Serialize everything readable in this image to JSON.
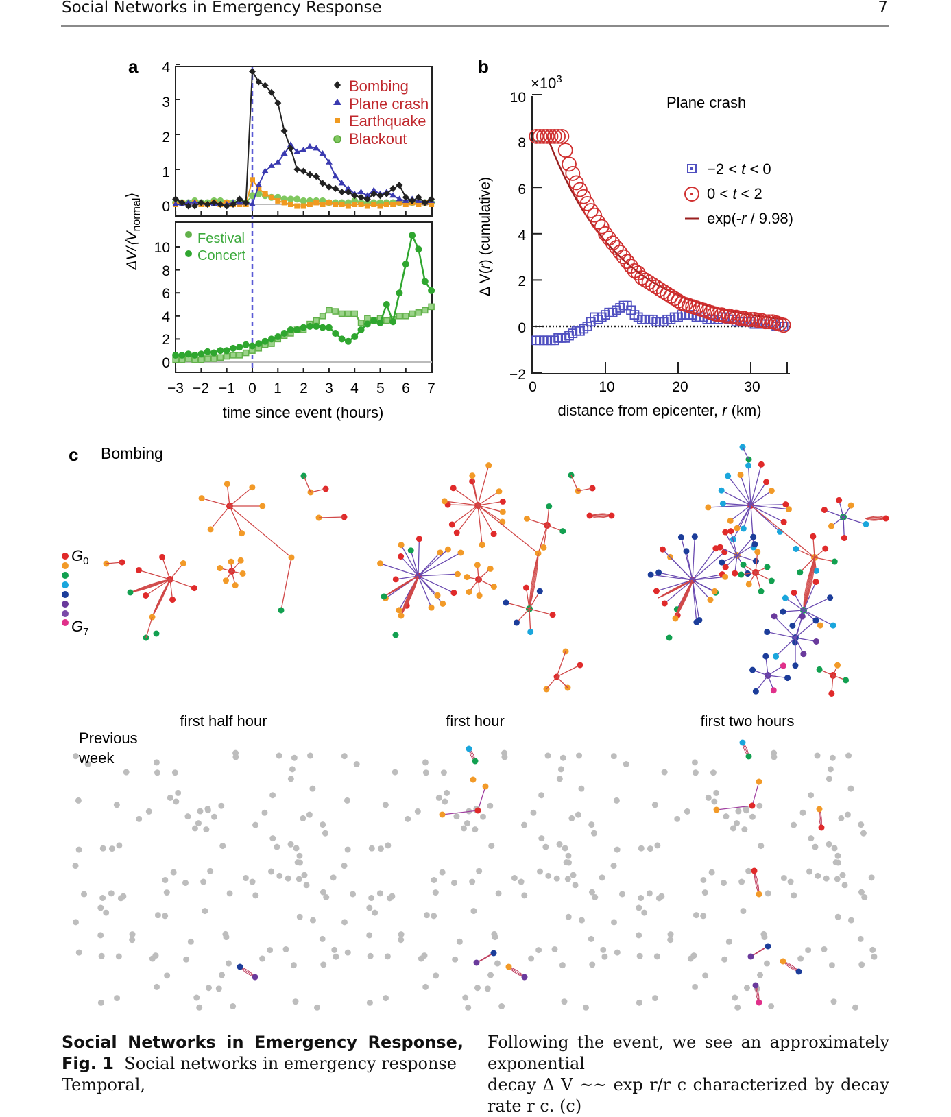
{
  "header": {
    "title": "Social Networks in Emergency Response",
    "page": "7"
  },
  "panel_a": {
    "letter": "a",
    "ylabel_pre": "ΔV/⟨V",
    "ylabel_sub": "normal",
    "ylabel_post": "⟩",
    "xlabel": "time since event (hours)",
    "xticks": [
      "−3",
      "−2",
      "−1",
      "0",
      "1",
      "2",
      "3",
      "4",
      "5",
      "6",
      "7"
    ],
    "top_yticks": [
      "0",
      "1",
      "2",
      "3",
      "4"
    ],
    "bottom_yticks": [
      "0",
      "2",
      "4",
      "6",
      "8",
      "10"
    ],
    "legend_top": [
      "Bombing",
      "Plane crash",
      "Earthquake",
      "Blackout"
    ],
    "legend_bottom": [
      "Festival",
      "Concert"
    ]
  },
  "panel_b": {
    "letter": "b",
    "title": "Plane crash",
    "multiplier": "×10",
    "multiplier_exp": "3",
    "ylabel_pre": "Δ V(",
    "ylabel_var": "r",
    "ylabel_post": ") (cumulative)",
    "xlabel_pre": "distance from epicenter, ",
    "xlabel_var": "r",
    "xlabel_post": " (km)",
    "xticks": [
      "0",
      "10",
      "20",
      "30"
    ],
    "yticks": [
      "−2",
      "0",
      "2",
      "4",
      "6",
      "8",
      "10"
    ],
    "legend": [
      {
        "a": "−2 < ",
        "v": "t",
        "b": " < 0"
      },
      {
        "a": "0 < ",
        "v": "t",
        "b": " < 2"
      },
      {
        "a": "exp(-",
        "v": "r",
        "b": " / 9.98)"
      }
    ]
  },
  "panel_c": {
    "letter": "c",
    "title": "Bombing",
    "g0": "G",
    "g0_sub": "0",
    "g7": "G",
    "g7_sub": "7",
    "col_labels": [
      "first half hour",
      "first hour",
      "first two hours"
    ],
    "row_label_1": "Previous",
    "row_label_2": "week"
  },
  "caption": {
    "left_bold_1": "Social",
    "left_bold_2": "Networks",
    "left_bold_3": "in",
    "left_bold_4": "Emergency",
    "left_bold_5": "Response,",
    "left_bold_fig": "Fig. 1",
    "left_text": "Social networks in emergency response Temporal,",
    "right_line1": "Following the event, we see an approximately exponential",
    "right_line2": "decay Δ V ~~ exp r/r c characterized by decay rate r c. (c)"
  },
  "chart_data": [
    {
      "type": "line",
      "panel": "a-top",
      "xlabel": "time since event (hours)",
      "ylabel": "ΔV/⟨V normal⟩",
      "xlim": [
        -3,
        7
      ],
      "ylim": [
        0,
        4
      ],
      "x": [
        -3,
        -2.75,
        -2.5,
        -2.25,
        -2,
        -1.75,
        -1.5,
        -1.25,
        -1,
        -0.75,
        -0.5,
        -0.25,
        0,
        0.25,
        0.5,
        0.75,
        1,
        1.25,
        1.5,
        1.75,
        2,
        2.25,
        2.5,
        2.75,
        3,
        3.25,
        3.5,
        3.75,
        4,
        4.25,
        4.5,
        4.75,
        5,
        5.25,
        5.5,
        5.75,
        6,
        6.25,
        6.5,
        6.75,
        7
      ],
      "series": [
        {
          "name": "Bombing",
          "color": "#222222",
          "values": [
            0.15,
            0.05,
            -0.05,
            -0.05,
            0.05,
            0.0,
            0.05,
            0.0,
            -0.05,
            0.0,
            0.15,
            0.05,
            3.8,
            3.5,
            3.4,
            3.2,
            2.9,
            2.1,
            1.6,
            1.0,
            0.95,
            0.85,
            0.8,
            0.6,
            0.5,
            0.45,
            0.35,
            0.35,
            0.25,
            0.2,
            0.15,
            0.3,
            0.25,
            0.3,
            0.45,
            0.55,
            0.2,
            0.1,
            0.2,
            0.05,
            0.15
          ]
        },
        {
          "name": "Plane crash",
          "color": "#3a3ab0",
          "values": [
            0.0,
            0.0,
            0.05,
            0.05,
            0.05,
            0.0,
            0.0,
            0.0,
            0.0,
            0.05,
            0.05,
            0.05,
            0.0,
            0.55,
            0.95,
            1.1,
            1.2,
            1.45,
            1.7,
            1.5,
            1.55,
            1.65,
            1.6,
            1.45,
            1.2,
            0.8,
            0.6,
            0.45,
            0.3,
            0.35,
            0.25,
            0.4,
            0.3,
            0.35,
            0.25,
            0.15,
            0.1,
            0.15,
            0.1,
            0.05,
            0.1
          ]
        },
        {
          "name": "Earthquake",
          "color": "#f09a20",
          "values": [
            0.0,
            0.05,
            0.0,
            0.05,
            0.0,
            0.0,
            0.05,
            0.0,
            0.05,
            0.0,
            0.0,
            0.0,
            0.7,
            0.45,
            0.3,
            0.2,
            0.1,
            0.05,
            0.0,
            -0.05,
            -0.05,
            0.0,
            0.05,
            0.0,
            0.05,
            0.0,
            0.0,
            -0.05,
            0.0,
            0.0,
            -0.05,
            0.0,
            -0.05,
            0.0,
            0.0,
            0.05,
            0.0,
            0.05,
            0.0,
            0.05,
            0.0
          ]
        },
        {
          "name": "Blackout",
          "color": "#80c860",
          "values": [
            0.05,
            0.05,
            0.05,
            0.1,
            0.05,
            0.05,
            0.1,
            0.1,
            0.05,
            0.05,
            0.05,
            0.05,
            0.25,
            0.3,
            0.25,
            0.2,
            0.2,
            0.15,
            0.15,
            0.15,
            0.1,
            0.1,
            0.1,
            0.1,
            0.05,
            0.05,
            0.05,
            0.05,
            0.1,
            0.05,
            0.05,
            0.05,
            0.05,
            0.05,
            0.05,
            0.05,
            0.05,
            0.05,
            0.05,
            0.05,
            0.05
          ]
        }
      ]
    },
    {
      "type": "line",
      "panel": "a-bottom",
      "xlabel": "time since event (hours)",
      "xlim": [
        -3,
        7
      ],
      "ylim": [
        0,
        12
      ],
      "x": [
        -3,
        -2.75,
        -2.5,
        -2.25,
        -2,
        -1.75,
        -1.5,
        -1.25,
        -1,
        -0.75,
        -0.5,
        -0.25,
        0,
        0.25,
        0.5,
        0.75,
        1,
        1.25,
        1.5,
        1.75,
        2,
        2.25,
        2.5,
        2.75,
        3,
        3.25,
        3.5,
        3.75,
        4,
        4.25,
        4.5,
        4.75,
        5,
        5.25,
        5.5,
        5.75,
        6,
        6.25,
        6.5,
        6.75,
        7
      ],
      "series": [
        {
          "name": "Festival",
          "color": "#62b14a",
          "values": [
            0.2,
            0.2,
            0.3,
            0.2,
            0.2,
            0.3,
            0.3,
            0.4,
            0.5,
            0.6,
            0.6,
            0.8,
            1.0,
            1.2,
            1.5,
            1.6,
            2.0,
            2.3,
            2.5,
            2.8,
            2.8,
            3.3,
            3.6,
            4.0,
            4.5,
            4.4,
            4.2,
            4.2,
            4.2,
            3.4,
            3.8,
            3.6,
            3.8,
            3.6,
            3.7,
            4.0,
            4.0,
            4.2,
            4.3,
            4.5,
            4.8
          ]
        },
        {
          "name": "Concert",
          "color": "#2fa62f",
          "values": [
            0.6,
            0.6,
            0.7,
            0.6,
            0.7,
            0.9,
            0.8,
            1.0,
            1.0,
            1.2,
            1.3,
            1.5,
            1.4,
            1.6,
            1.8,
            2.0,
            2.2,
            2.5,
            2.8,
            2.8,
            3.0,
            3.1,
            3.1,
            3.0,
            3.0,
            2.5,
            2.0,
            1.8,
            2.2,
            2.8,
            3.3,
            3.6,
            3.4,
            5.0,
            3.5,
            6.0,
            8.5,
            11.0,
            9.8,
            7.0,
            6.2
          ]
        }
      ]
    },
    {
      "type": "scatter",
      "panel": "b",
      "title": "Plane crash",
      "xlabel": "distance from epicenter, r (km)",
      "ylabel": "Δ V(r) (cumulative)",
      "xlim": [
        0,
        35
      ],
      "ylim": [
        -2,
        10
      ],
      "series": [
        {
          "name": "−2 < t < 0",
          "marker": "square",
          "color": "#5050c0",
          "x": [
            0.5,
            1,
            1.5,
            2,
            2.5,
            3,
            3.5,
            4,
            4.5,
            5,
            5.5,
            6,
            6.5,
            7,
            7.5,
            8,
            8.5,
            9,
            9.5,
            10,
            10.5,
            11,
            11.5,
            12,
            12.5,
            13,
            13.5,
            14,
            14.5,
            15,
            15.5,
            16,
            16.5,
            17,
            17.5,
            18,
            18.5,
            19,
            19.5,
            20,
            20.5,
            21,
            21.5,
            22,
            22.5,
            23,
            23.5,
            24,
            24.5,
            25,
            25.5,
            26,
            26.5,
            27,
            27.5,
            28,
            28.5,
            29,
            29.5,
            30,
            30.5,
            31,
            31.5,
            32,
            32.5,
            33,
            33.5,
            34,
            34.5
          ],
          "y": [
            -0.6,
            -0.6,
            -0.6,
            -0.6,
            -0.6,
            -0.6,
            -0.5,
            -0.5,
            -0.5,
            -0.4,
            -0.3,
            -0.2,
            -0.2,
            -0.1,
            0.0,
            0.2,
            0.4,
            0.3,
            0.4,
            0.5,
            0.6,
            0.6,
            0.7,
            0.8,
            0.9,
            0.9,
            0.7,
            0.5,
            0.4,
            0.3,
            0.3,
            0.3,
            0.3,
            0.2,
            0.2,
            0.2,
            0.3,
            0.3,
            0.4,
            0.4,
            0.5,
            0.5,
            0.5,
            0.5,
            0.4,
            0.4,
            0.4,
            0.3,
            0.3,
            0.3,
            0.3,
            0.4,
            0.4,
            0.3,
            0.3,
            0.2,
            0.2,
            0.2,
            0.2,
            0.2,
            0.1,
            0.1,
            0.1,
            0.1,
            0.1,
            0.1,
            0.0,
            0.0,
            0.0
          ]
        },
        {
          "name": "0 < t < 2",
          "marker": "circle",
          "color": "#d03030",
          "x": [
            0.5,
            1,
            1.5,
            2,
            2.5,
            3,
            3.5,
            4,
            4.5,
            5,
            5.5,
            6,
            6.5,
            7,
            7.5,
            8,
            8.5,
            9,
            9.5,
            10,
            10.5,
            11,
            11.5,
            12,
            12.5,
            13,
            13.5,
            14,
            14.5,
            15,
            15.5,
            16,
            16.5,
            17,
            17.5,
            18,
            18.5,
            19,
            19.5,
            20,
            20.5,
            21,
            21.5,
            22,
            22.5,
            23,
            23.5,
            24,
            24.5,
            25,
            25.5,
            26,
            26.5,
            27,
            27.5,
            28,
            28.5,
            29,
            29.5,
            30,
            30.5,
            31,
            31.5,
            32,
            32.5,
            33,
            33.5,
            34,
            34.5
          ],
          "y": [
            8.2,
            8.2,
            8.2,
            8.2,
            8.2,
            8.2,
            8.2,
            8.2,
            7.6,
            7.0,
            6.6,
            6.2,
            5.9,
            5.6,
            5.3,
            5.0,
            4.8,
            4.5,
            4.3,
            4.0,
            3.8,
            3.6,
            3.4,
            3.2,
            3.0,
            2.8,
            2.6,
            2.4,
            2.3,
            2.1,
            2.0,
            1.9,
            1.8,
            1.7,
            1.6,
            1.5,
            1.4,
            1.3,
            1.2,
            1.1,
            1.0,
            0.95,
            0.9,
            0.85,
            0.8,
            0.75,
            0.7,
            0.65,
            0.6,
            0.55,
            0.5,
            0.5,
            0.45,
            0.45,
            0.4,
            0.4,
            0.35,
            0.35,
            0.3,
            0.3,
            0.3,
            0.25,
            0.25,
            0.2,
            0.2,
            0.2,
            0.15,
            0.1,
            0.05
          ]
        },
        {
          "name": "exp(-r / 9.98)",
          "type": "line",
          "color": "#9a1f1f",
          "decay": 9.98
        }
      ]
    }
  ]
}
